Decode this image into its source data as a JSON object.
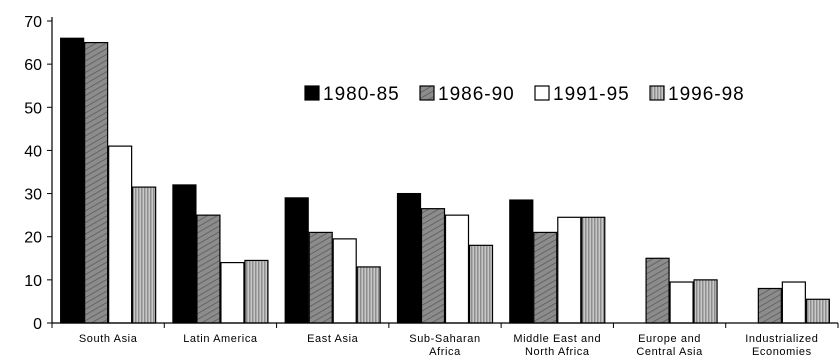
{
  "chart_data": {
    "type": "bar",
    "categories": [
      [
        "South Asia"
      ],
      [
        "Latin America"
      ],
      [
        "East Asia"
      ],
      [
        "Sub-Saharan",
        "Africa"
      ],
      [
        "Middle East and",
        "North Africa"
      ],
      [
        "Europe and",
        "Central Asia"
      ],
      [
        "Industrialized",
        "Economies"
      ]
    ],
    "series": [
      {
        "name": "1980-85",
        "values": [
          66,
          32,
          29,
          30,
          28.5,
          null,
          null
        ],
        "fill": "#000000"
      },
      {
        "name": "1986-90",
        "values": [
          65,
          25,
          21,
          26.5,
          21,
          15,
          8
        ],
        "fill": "#8c8c8c"
      },
      {
        "name": "1991-95",
        "values": [
          41,
          14,
          19.5,
          25,
          24.5,
          9.5,
          9.5
        ],
        "fill": "#ffffff"
      },
      {
        "name": "1996-98",
        "values": [
          31.5,
          14.5,
          13,
          18,
          24.5,
          10,
          5.5
        ],
        "fill": "#b0b0b0"
      }
    ],
    "ylim": [
      0,
      70
    ],
    "yticks": [
      0,
      10,
      20,
      30,
      40,
      50,
      60,
      70
    ],
    "legend_position": "top-right",
    "grid": false
  }
}
